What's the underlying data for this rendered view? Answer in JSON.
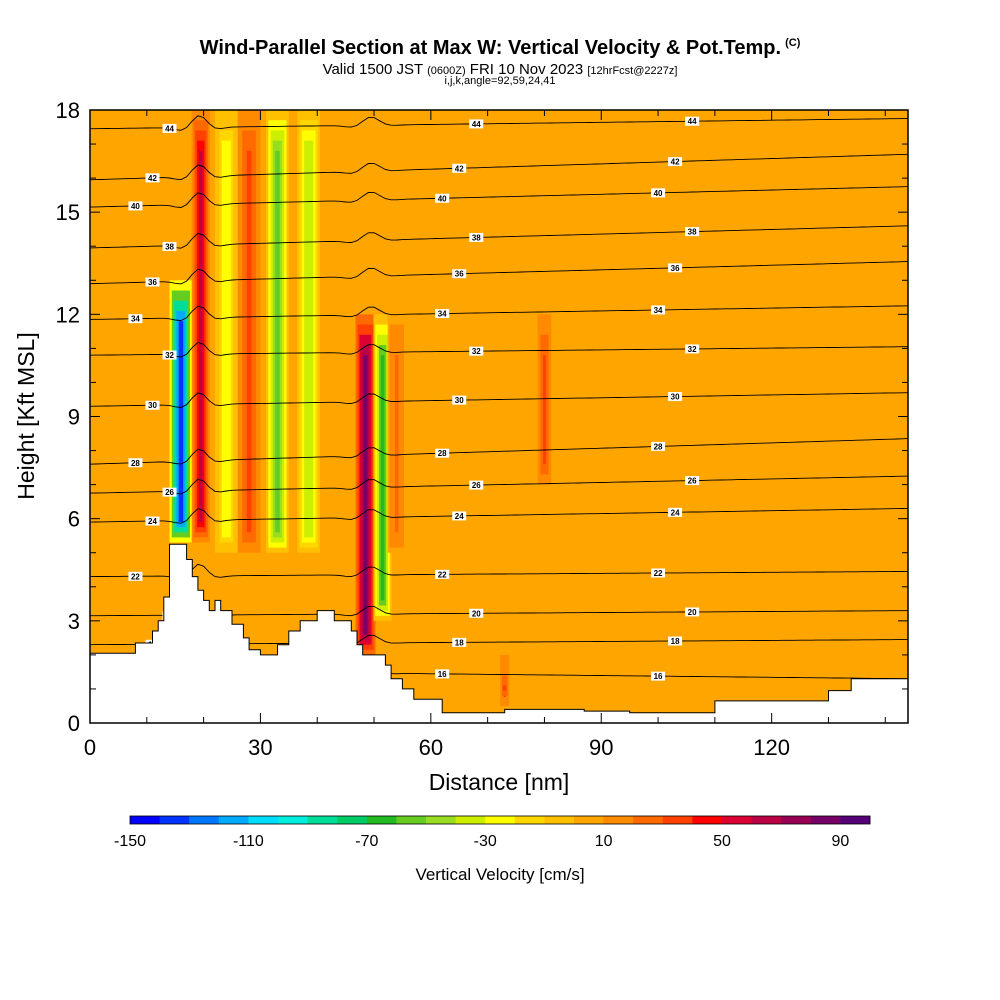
{
  "header": {
    "title": "Wind-Parallel Section at Max W: Vertical Velocity & Pot.Temp.",
    "title_tag": "(C)",
    "subtitle_a": "Valid 1500 JST",
    "subtitle_b": "(0600Z)",
    "subtitle_c": "FRI 10 Nov 2023",
    "subtitle_d": "[12hrFcst@2227z]",
    "params": "i,j,k,angle=92,59,24,41"
  },
  "chart_data": {
    "type": "heatmap",
    "xlabel": "Distance [nm]",
    "ylabel": "Height [Kft MSL]",
    "xlim": [
      0,
      144
    ],
    "ylim": [
      0,
      18
    ],
    "x_ticks": [
      0,
      30,
      60,
      90,
      120
    ],
    "y_ticks": [
      0,
      3,
      6,
      9,
      12,
      15,
      18
    ],
    "colorbar": {
      "title": "Vertical Velocity [cm/s]",
      "min": -150,
      "max": 100,
      "step": 10,
      "tick_labels": [
        -150,
        -110,
        -70,
        -30,
        10,
        50,
        90
      ],
      "colors": [
        "#0000ff",
        "#0033ff",
        "#0077ff",
        "#00aaff",
        "#00ddff",
        "#00eedd",
        "#00dd99",
        "#00cc66",
        "#22bb22",
        "#66cc22",
        "#99dd22",
        "#ccee00",
        "#ffff00",
        "#ffd700",
        "#ffc000",
        "#ffa500",
        "#ff8a00",
        "#ff6a00",
        "#ff4000",
        "#ff0000",
        "#dd0033",
        "#bb0044",
        "#990055",
        "#770066",
        "#550077"
      ]
    },
    "vertical_velocity_features": [
      {
        "x_center": 16,
        "x_width": 2.5,
        "z_bottom": 5.3,
        "z_top": 13,
        "value": -140
      },
      {
        "x_center": 19.5,
        "x_width": 2.0,
        "z_bottom": 5.3,
        "z_top": 18,
        "value": 60
      },
      {
        "x_center": 24,
        "x_width": 2.5,
        "z_bottom": 5,
        "z_top": 18,
        "value": -30
      },
      {
        "x_center": 28,
        "x_width": 2.5,
        "z_bottom": 5,
        "z_top": 18,
        "value": 35
      },
      {
        "x_center": 33,
        "x_width": 2.5,
        "z_bottom": 5,
        "z_top": 18,
        "value": -60
      },
      {
        "x_center": 38.5,
        "x_width": 2.5,
        "z_bottom": 5,
        "z_top": 18,
        "value": -40
      },
      {
        "x_center": 48.5,
        "x_width": 2.2,
        "z_bottom": 2,
        "z_top": 12,
        "value": 80
      },
      {
        "x_center": 51.5,
        "x_width": 2.0,
        "z_bottom": 3,
        "z_top": 12,
        "value": -70
      },
      {
        "x_center": 54,
        "x_width": 2.0,
        "z_bottom": 5,
        "z_top": 12,
        "value": 20
      },
      {
        "x_center": 80,
        "x_width": 1.5,
        "z_bottom": 7,
        "z_top": 12,
        "value": 30
      },
      {
        "x_center": 73,
        "x_width": 1.0,
        "z_bottom": 0.5,
        "z_top": 2,
        "value": 40
      }
    ],
    "theta_contours": [
      {
        "label": "16",
        "z_left": 1.55,
        "z_right": 1.3
      },
      {
        "label": "18",
        "z_left": 2.3,
        "z_right": 2.45
      },
      {
        "label": "20",
        "z_left": 3.15,
        "z_right": 3.3
      },
      {
        "label": "22",
        "z_left": 4.3,
        "z_right": 4.45
      },
      {
        "label": "24",
        "z_left": 5.9,
        "z_right": 6.3
      },
      {
        "label": "26",
        "z_left": 6.75,
        "z_right": 7.25
      },
      {
        "label": "28",
        "z_left": 7.6,
        "z_right": 8.35
      },
      {
        "label": "30",
        "z_left": 9.3,
        "z_right": 9.7
      },
      {
        "label": "32",
        "z_left": 10.8,
        "z_right": 11.05
      },
      {
        "label": "34",
        "z_left": 11.85,
        "z_right": 12.25
      },
      {
        "label": "36",
        "z_left": 12.9,
        "z_right": 13.55
      },
      {
        "label": "38",
        "z_left": 13.95,
        "z_right": 14.6
      },
      {
        "label": "40",
        "z_left": 15.15,
        "z_right": 15.75
      },
      {
        "label": "42",
        "z_left": 15.95,
        "z_right": 16.7
      },
      {
        "label": "44",
        "z_left": 17.45,
        "z_right": 17.75
      }
    ],
    "terrain": [
      [
        0,
        2.05
      ],
      [
        8,
        2.05
      ],
      [
        8,
        2.35
      ],
      [
        11,
        2.35
      ],
      [
        11,
        2.7
      ],
      [
        12,
        2.7
      ],
      [
        12,
        3
      ],
      [
        13,
        3
      ],
      [
        13,
        3.7
      ],
      [
        14,
        3.7
      ],
      [
        14,
        5.25
      ],
      [
        17,
        5.25
      ],
      [
        17,
        4.8
      ],
      [
        18,
        4.8
      ],
      [
        18,
        4.3
      ],
      [
        19,
        4.3
      ],
      [
        19,
        3.9
      ],
      [
        20,
        3.9
      ],
      [
        20,
        3.6
      ],
      [
        21,
        3.6
      ],
      [
        21,
        3.3
      ],
      [
        22,
        3.3
      ],
      [
        22,
        3.6
      ],
      [
        23,
        3.6
      ],
      [
        23,
        3.3
      ],
      [
        25,
        3.3
      ],
      [
        25,
        2.9
      ],
      [
        27,
        2.9
      ],
      [
        27,
        2.5
      ],
      [
        28,
        2.5
      ],
      [
        28,
        2.15
      ],
      [
        30,
        2.15
      ],
      [
        30,
        2
      ],
      [
        33,
        2
      ],
      [
        33,
        2.3
      ],
      [
        35,
        2.3
      ],
      [
        35,
        2.7
      ],
      [
        37,
        2.7
      ],
      [
        37,
        3
      ],
      [
        40,
        3
      ],
      [
        40,
        3.3
      ],
      [
        43,
        3.3
      ],
      [
        43,
        3
      ],
      [
        46,
        3
      ],
      [
        46,
        2.7
      ],
      [
        47,
        2.7
      ],
      [
        47,
        2.3
      ],
      [
        48,
        2.3
      ],
      [
        48,
        2
      ],
      [
        52,
        2
      ],
      [
        52,
        1.7
      ],
      [
        53,
        1.7
      ],
      [
        53,
        1.3
      ],
      [
        55,
        1.3
      ],
      [
        55,
        1
      ],
      [
        57,
        1
      ],
      [
        57,
        0.7
      ],
      [
        62,
        0.7
      ],
      [
        62,
        0.3
      ],
      [
        73,
        0.3
      ],
      [
        73,
        0.4
      ],
      [
        87,
        0.4
      ],
      [
        87,
        0.35
      ],
      [
        95,
        0.35
      ],
      [
        95,
        0.3
      ],
      [
        110,
        0.3
      ],
      [
        110,
        0.65
      ],
      [
        130,
        0.65
      ],
      [
        130,
        0.95
      ],
      [
        134,
        0.95
      ],
      [
        134,
        1.3
      ],
      [
        144,
        1.3
      ]
    ]
  }
}
